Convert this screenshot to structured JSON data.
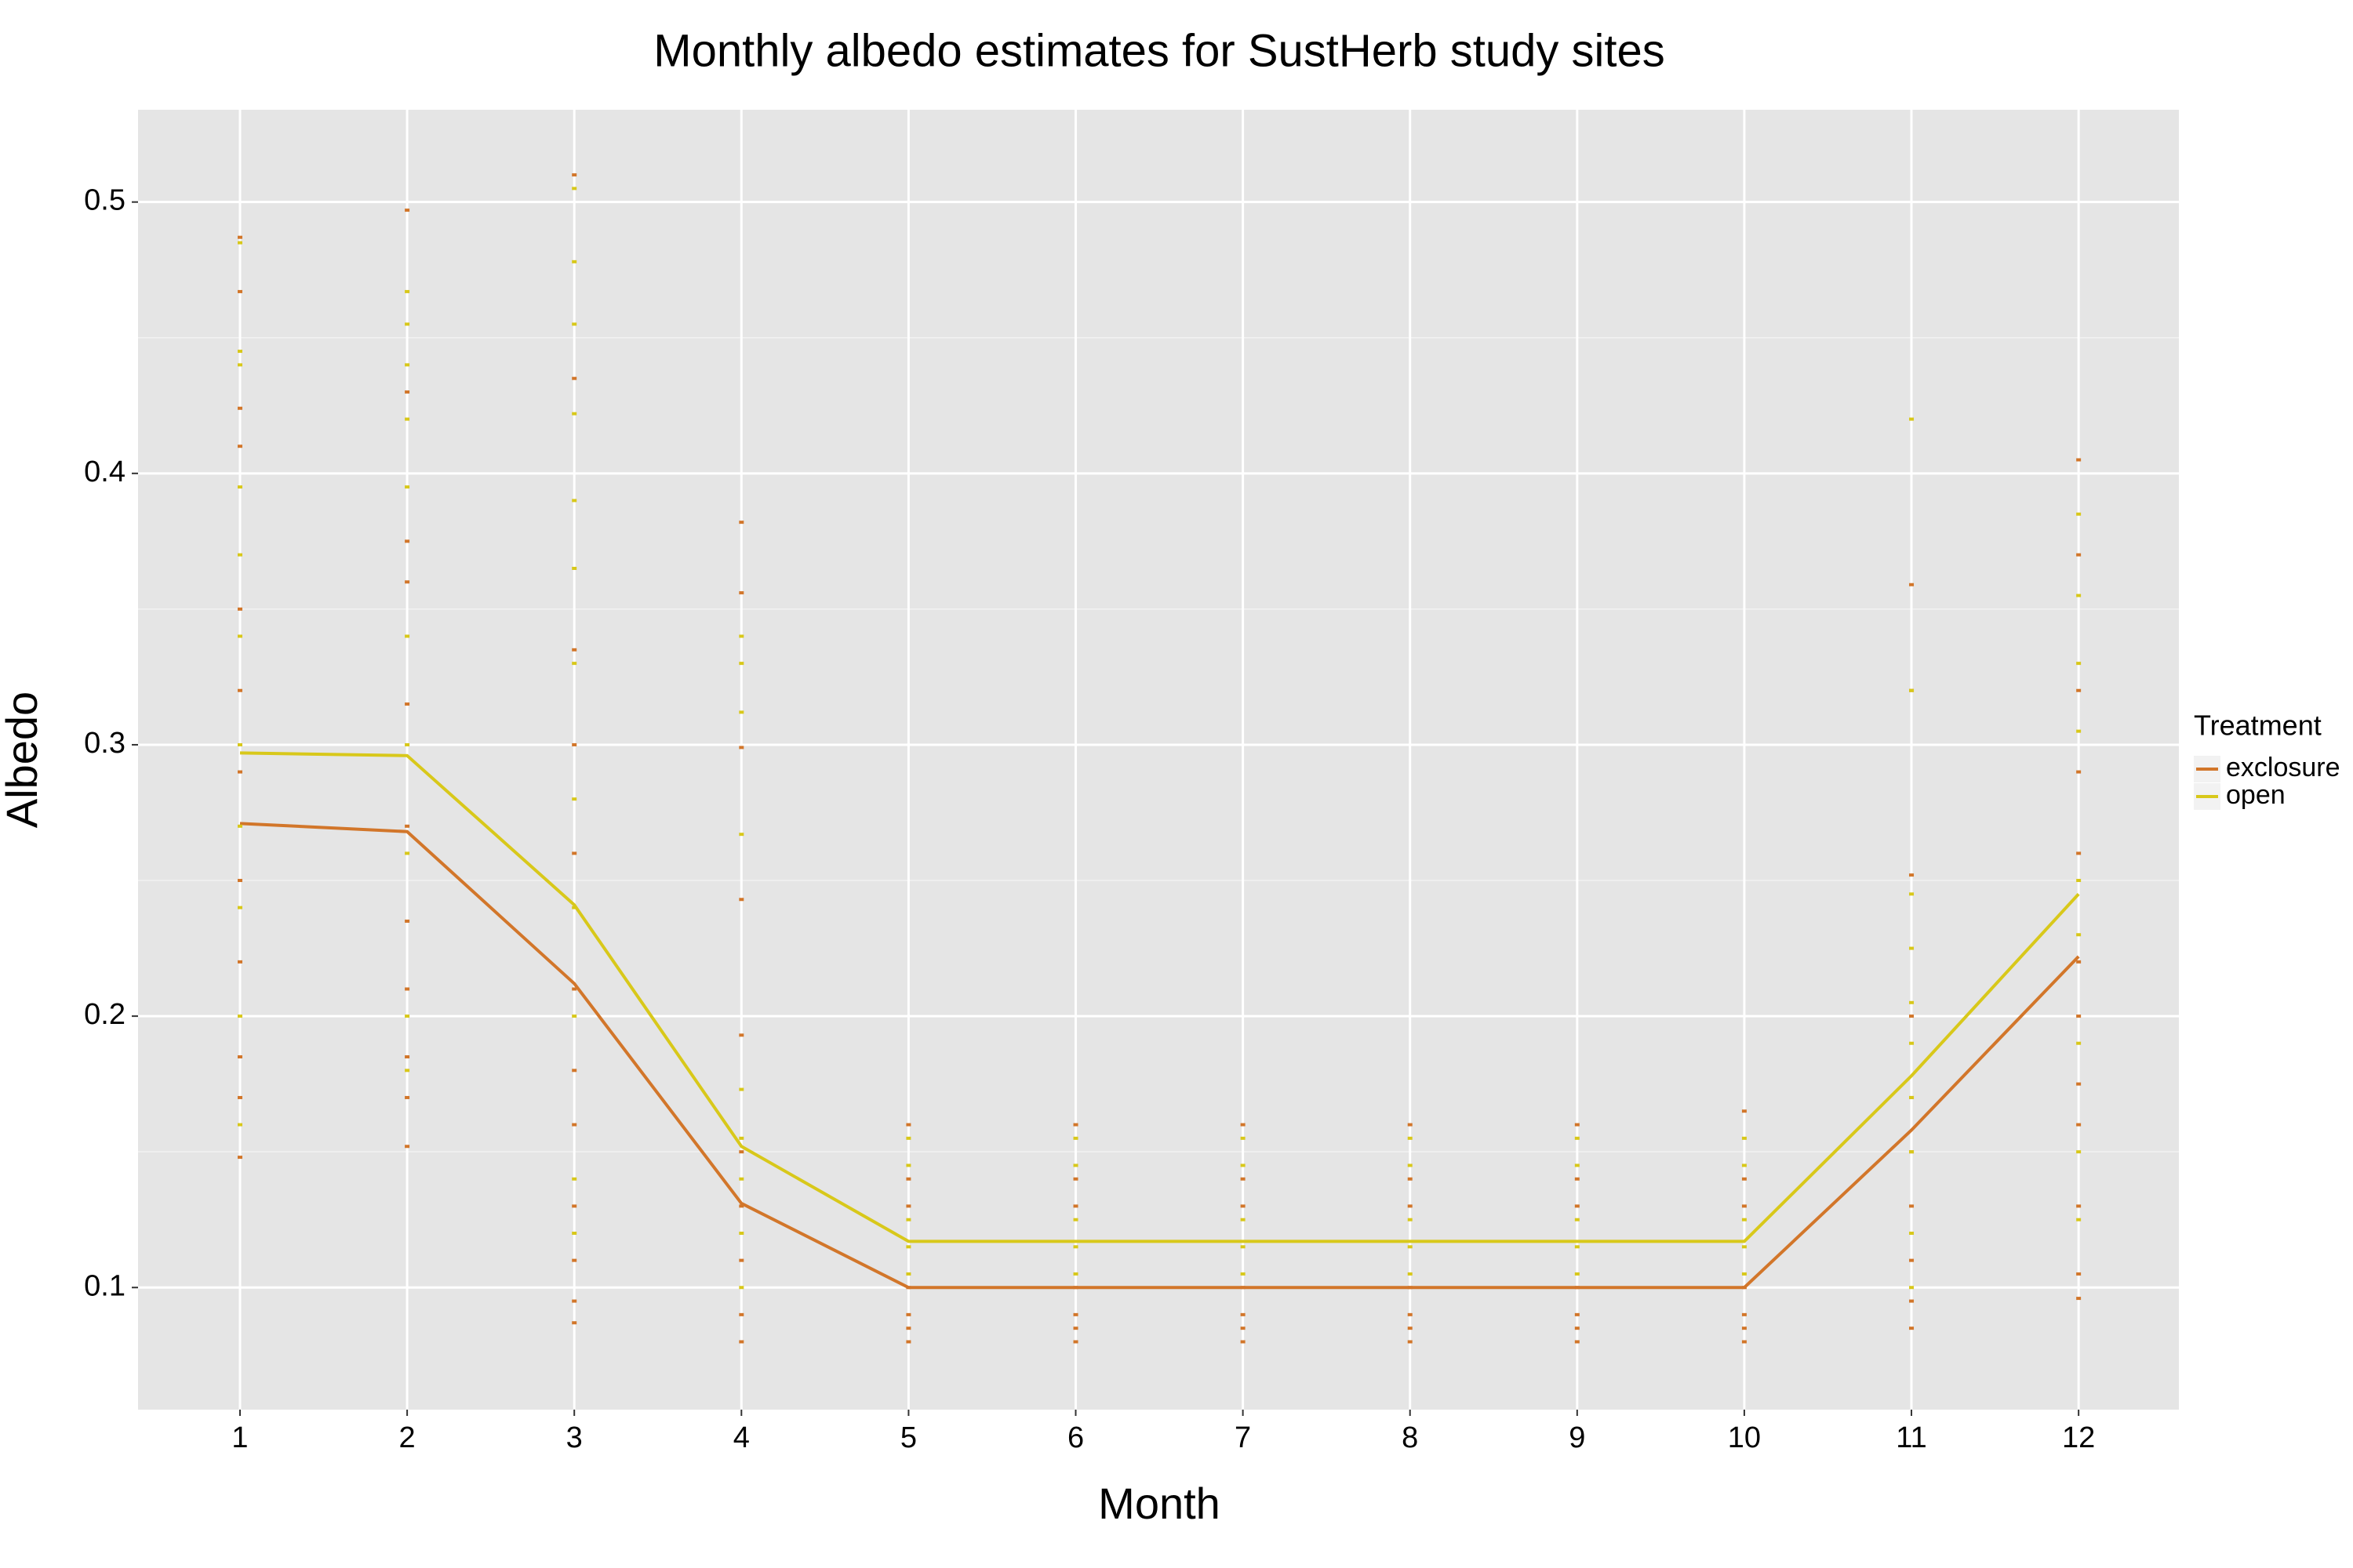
{
  "chart_data": {
    "type": "line",
    "title": "Monthly albedo estimates for SustHerb study sites",
    "x_label": "Month",
    "y_label": "Albedo",
    "legend_title": "Treatment",
    "x": [
      1,
      2,
      3,
      4,
      5,
      6,
      7,
      8,
      9,
      10,
      11,
      12
    ],
    "xlim": [
      0.39,
      12.6
    ],
    "xticks": [
      1,
      2,
      3,
      4,
      5,
      6,
      7,
      8,
      9,
      10,
      11,
      12
    ],
    "ylim": [
      0.055,
      0.534
    ],
    "yticks": [
      0.1,
      0.2,
      0.3,
      0.4,
      0.5
    ],
    "yminor": [
      0.15,
      0.25,
      0.35,
      0.45
    ],
    "grid": true,
    "legend": "right",
    "series": [
      {
        "name": "exclosure",
        "color": "#d2762a",
        "values": [
          0.271,
          0.268,
          0.212,
          0.131,
          0.1,
          0.1,
          0.1,
          0.1,
          0.1,
          0.1,
          0.158,
          0.222
        ],
        "point_months": [
          1,
          2,
          3,
          4,
          5,
          6,
          7,
          8,
          9,
          10,
          11,
          12
        ],
        "point_values": [
          [
            0.487,
            0.467,
            0.424,
            0.41,
            0.35,
            0.32,
            0.29,
            0.25,
            0.22,
            0.185,
            0.17,
            0.148
          ],
          [
            0.497,
            0.43,
            0.375,
            0.36,
            0.315,
            0.27,
            0.235,
            0.21,
            0.185,
            0.17,
            0.152
          ],
          [
            0.51,
            0.435,
            0.335,
            0.3,
            0.26,
            0.21,
            0.18,
            0.16,
            0.13,
            0.11,
            0.095,
            0.087
          ],
          [
            0.382,
            0.356,
            0.299,
            0.243,
            0.193,
            0.15,
            0.13,
            0.11,
            0.09,
            0.08
          ],
          [
            0.16,
            0.14,
            0.13,
            0.1,
            0.09,
            0.085,
            0.08
          ],
          [
            0.16,
            0.14,
            0.13,
            0.1,
            0.09,
            0.085,
            0.08
          ],
          [
            0.16,
            0.14,
            0.13,
            0.1,
            0.09,
            0.085,
            0.08
          ],
          [
            0.16,
            0.14,
            0.13,
            0.1,
            0.09,
            0.085,
            0.08
          ],
          [
            0.16,
            0.14,
            0.13,
            0.1,
            0.09,
            0.085,
            0.08
          ],
          [
            0.165,
            0.14,
            0.13,
            0.1,
            0.09,
            0.085,
            0.08
          ],
          [
            0.359,
            0.32,
            0.252,
            0.2,
            0.17,
            0.15,
            0.13,
            0.11,
            0.095,
            0.085
          ],
          [
            0.405,
            0.37,
            0.32,
            0.29,
            0.26,
            0.22,
            0.2,
            0.175,
            0.16,
            0.13,
            0.105,
            0.096
          ]
        ]
      },
      {
        "name": "open",
        "color": "#d8c81a",
        "values": [
          0.297,
          0.296,
          0.241,
          0.152,
          0.117,
          0.117,
          0.117,
          0.117,
          0.117,
          0.117,
          0.178,
          0.245
        ],
        "point_months": [
          1,
          2,
          3,
          4,
          5,
          6,
          7,
          8,
          9,
          10,
          11,
          12
        ],
        "point_values": [
          [
            0.485,
            0.445,
            0.44,
            0.395,
            0.37,
            0.34,
            0.3,
            0.27,
            0.24,
            0.2,
            0.16
          ],
          [
            0.467,
            0.455,
            0.44,
            0.42,
            0.395,
            0.34,
            0.3,
            0.26,
            0.2,
            0.18
          ],
          [
            0.505,
            0.478,
            0.455,
            0.422,
            0.39,
            0.365,
            0.33,
            0.28,
            0.24,
            0.2,
            0.14,
            0.12
          ],
          [
            0.34,
            0.33,
            0.312,
            0.267,
            0.173,
            0.155,
            0.14,
            0.12,
            0.1
          ],
          [
            0.155,
            0.145,
            0.125,
            0.115,
            0.105
          ],
          [
            0.155,
            0.145,
            0.125,
            0.115,
            0.105
          ],
          [
            0.155,
            0.145,
            0.125,
            0.115,
            0.105
          ],
          [
            0.155,
            0.145,
            0.125,
            0.115,
            0.105
          ],
          [
            0.155,
            0.145,
            0.125,
            0.115,
            0.105
          ],
          [
            0.155,
            0.145,
            0.125,
            0.115,
            0.105
          ],
          [
            0.42,
            0.32,
            0.245,
            0.225,
            0.205,
            0.19,
            0.17,
            0.15,
            0.12,
            0.1
          ],
          [
            0.385,
            0.355,
            0.33,
            0.305,
            0.25,
            0.23,
            0.19,
            0.15,
            0.125
          ]
        ]
      }
    ]
  }
}
